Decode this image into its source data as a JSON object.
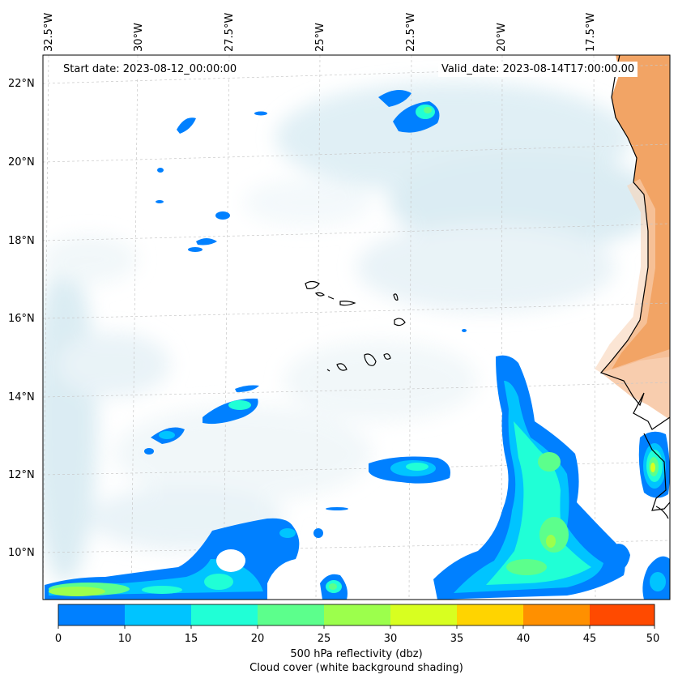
{
  "map": {
    "start_date_label": "Start date: 2023-08-12_00:00:00",
    "valid_date_label": "Valid_date: 2023-08-14T17:00:00.00",
    "lat_labels": [
      "22°N",
      "20°N",
      "18°N",
      "16°N",
      "14°N",
      "12°N",
      "10°N"
    ],
    "lon_labels": [
      "32.5°W",
      "30°W",
      "27.5°W",
      "25°W",
      "22.5°W",
      "20°W",
      "17.5°W"
    ],
    "colors": {
      "land_shading": "#f4a262",
      "cloud_shading": "#d6eaf2",
      "coastline": "#000000",
      "gridline": "#c8c8c8"
    }
  },
  "colorbar": {
    "levels": [
      0,
      10,
      15,
      20,
      25,
      30,
      35,
      40,
      45,
      50
    ],
    "tick_labels": [
      "0",
      "10",
      "15",
      "20",
      "25",
      "30",
      "35",
      "40",
      "45",
      "50"
    ],
    "colors": [
      "#0080ff",
      "#00c4ff",
      "#20ffd6",
      "#5cff8c",
      "#9cff4c",
      "#d8ff20",
      "#ffd400",
      "#ff9000",
      "#ff4a00"
    ],
    "label": "500 hPa reflectivity (dbz)",
    "sublabel": "Cloud cover (white background shading)"
  }
}
